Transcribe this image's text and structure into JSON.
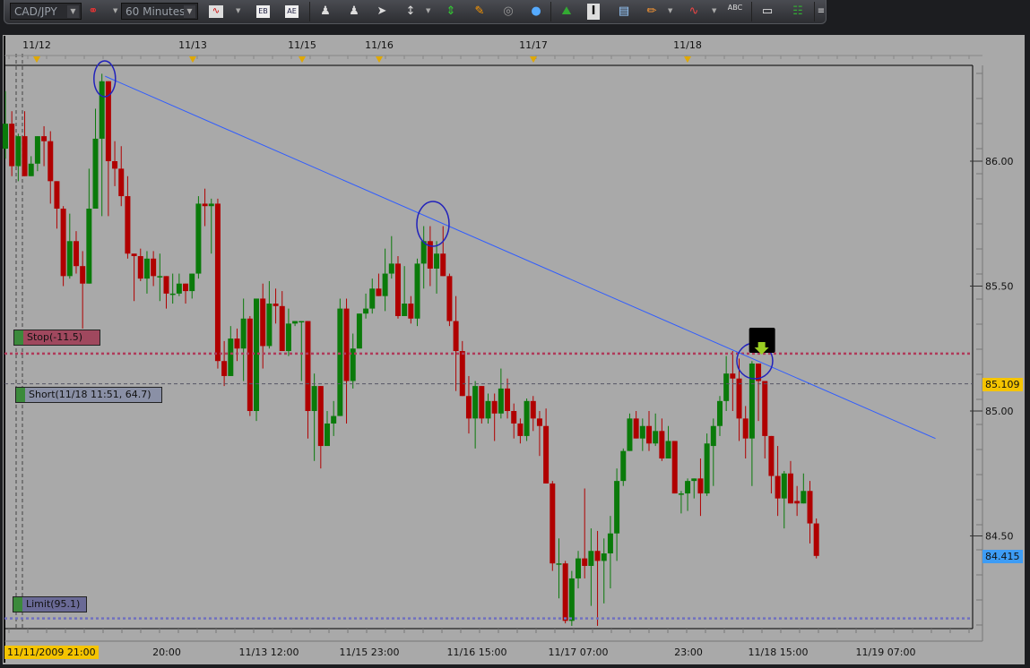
{
  "toolbar": {
    "symbol": "CAD/JPY",
    "timeframe": "60 Minutes",
    "icons": [
      "link-remove-icon",
      "chart-type-icon",
      "bid-icon",
      "ask-icon",
      "zoom-in-icon",
      "zoom-out-icon",
      "cursor-add-icon",
      "zoom-range-icon",
      "vertical-fit-icon",
      "edit-icon",
      "eye-icon",
      "globe-icon",
      "add-picture-icon",
      "text-icon",
      "indicator-list-icon",
      "pencil-icon",
      "signal-icon",
      "add-text-icon",
      "eraser-icon",
      "hierarchy-icon",
      "menu-icon"
    ],
    "add_text_label": "ABC"
  },
  "orders": {
    "stop": {
      "label": "Stop(-11.5)",
      "price": 85.23,
      "color": "#b03a5a"
    },
    "short": {
      "label": "Short(11/18 11:51, 64.7)",
      "price": 85.109,
      "color": "#555566"
    },
    "limit": {
      "label": "Limit(95.1)",
      "price": 84.17,
      "color": "#7070c0"
    }
  },
  "price_tags": {
    "entry": {
      "text": "85.109",
      "color": "#f5c400"
    },
    "current": {
      "text": "84.415",
      "color": "#3d9cf5"
    }
  },
  "chart_data": {
    "type": "candlestick",
    "title": "",
    "ylim": [
      84.13,
      86.38
    ],
    "yticks": [
      "86.00",
      "85.50",
      "85.00",
      "84.50"
    ],
    "ytick_values": [
      86.0,
      85.5,
      85.0,
      84.5
    ],
    "top_date_labels": [
      "11/12",
      "11/13",
      "11/15",
      "11/16",
      "11/17",
      "11/18"
    ],
    "x_labels": [
      "11/11/2009 21:00",
      "20:00",
      "11/13 12:00",
      "11/15 23:00",
      "11/16 15:00",
      "11/17 07:00",
      "23:00",
      "11/18 15:00",
      "11/19 07:00"
    ],
    "up_color": "#0a7a0a",
    "down_color": "#b00000",
    "trendline": {
      "from_candle": 15.5,
      "from_price": 86.34,
      "to_candle": 144.5,
      "to_price": 84.89,
      "color": "#2f5cff"
    },
    "touch_circles_at_candles": [
      15.5,
      66.5,
      116.5
    ],
    "sell_signal_candle": 117.5,
    "candles_ohlc": [
      [
        86.05,
        86.28,
        86.01,
        86.15
      ],
      [
        86.15,
        86.2,
        85.94,
        85.98
      ],
      [
        85.98,
        86.11,
        85.92,
        86.1
      ],
      [
        86.1,
        86.2,
        85.94,
        85.94
      ],
      [
        85.94,
        86.02,
        85.94,
        85.99
      ],
      [
        85.99,
        86.1,
        85.96,
        86.1
      ],
      [
        86.1,
        86.14,
        85.98,
        86.08
      ],
      [
        86.08,
        86.12,
        85.83,
        85.92
      ],
      [
        85.92,
        85.92,
        85.73,
        85.81
      ],
      [
        85.81,
        85.82,
        85.5,
        85.54
      ],
      [
        85.54,
        85.79,
        85.53,
        85.68
      ],
      [
        85.68,
        85.72,
        85.55,
        85.58
      ],
      [
        85.58,
        85.64,
        85.33,
        85.51
      ],
      [
        85.51,
        85.97,
        85.51,
        85.81
      ],
      [
        85.81,
        86.21,
        85.81,
        86.09
      ],
      [
        86.09,
        86.35,
        85.78,
        86.32
      ],
      [
        86.32,
        86.32,
        85.78,
        86.0
      ],
      [
        86.0,
        86.08,
        85.9,
        85.97
      ],
      [
        85.97,
        86.06,
        85.82,
        85.86
      ],
      [
        85.86,
        85.94,
        85.61,
        85.63
      ],
      [
        85.63,
        85.63,
        85.44,
        85.62
      ],
      [
        85.62,
        85.65,
        85.52,
        85.53
      ],
      [
        85.53,
        85.64,
        85.47,
        85.61
      ],
      [
        85.61,
        85.64,
        85.5,
        85.54
      ],
      [
        85.54,
        85.63,
        85.44,
        85.54
      ],
      [
        85.54,
        85.54,
        85.41,
        85.47
      ],
      [
        85.47,
        85.55,
        85.43,
        85.47
      ],
      [
        85.47,
        85.55,
        85.46,
        85.51
      ],
      [
        85.51,
        85.51,
        85.43,
        85.48
      ],
      [
        85.48,
        85.55,
        85.45,
        85.55
      ],
      [
        85.55,
        85.86,
        85.53,
        85.83
      ],
      [
        85.83,
        85.89,
        85.74,
        85.82
      ],
      [
        85.82,
        85.85,
        85.63,
        85.83
      ],
      [
        85.83,
        85.85,
        85.17,
        85.2
      ],
      [
        85.2,
        85.28,
        85.1,
        85.14
      ],
      [
        85.14,
        85.34,
        85.14,
        85.29
      ],
      [
        85.29,
        85.33,
        85.2,
        85.25
      ],
      [
        85.25,
        85.45,
        85.12,
        85.37
      ],
      [
        85.37,
        85.38,
        84.98,
        85.0
      ],
      [
        85.0,
        85.45,
        84.96,
        85.45
      ],
      [
        85.45,
        85.51,
        85.17,
        85.26
      ],
      [
        85.26,
        85.52,
        85.25,
        85.43
      ],
      [
        85.43,
        85.49,
        85.35,
        85.42
      ],
      [
        85.42,
        85.48,
        85.24,
        85.24
      ],
      [
        85.24,
        85.41,
        85.22,
        85.35
      ],
      [
        85.35,
        85.36,
        85.34,
        85.36
      ],
      [
        85.36,
        85.36,
        85.12,
        85.36
      ],
      [
        85.36,
        85.36,
        84.89,
        85.0
      ],
      [
        85.0,
        85.15,
        84.8,
        85.1
      ],
      [
        85.1,
        85.1,
        84.77,
        84.86
      ],
      [
        84.86,
        85.0,
        84.86,
        84.95
      ],
      [
        84.95,
        85.04,
        84.9,
        84.98
      ],
      [
        84.98,
        85.45,
        84.98,
        85.41
      ],
      [
        85.41,
        85.45,
        84.95,
        85.12
      ],
      [
        85.12,
        85.31,
        85.09,
        85.25
      ],
      [
        85.25,
        85.39,
        85.25,
        85.39
      ],
      [
        85.39,
        85.47,
        85.37,
        85.41
      ],
      [
        85.41,
        85.53,
        85.39,
        85.49
      ],
      [
        85.49,
        85.55,
        85.46,
        85.46
      ],
      [
        85.46,
        85.65,
        85.4,
        85.55
      ],
      [
        85.55,
        85.7,
        85.53,
        85.59
      ],
      [
        85.59,
        85.62,
        85.37,
        85.38
      ],
      [
        85.38,
        85.58,
        85.38,
        85.43
      ],
      [
        85.43,
        85.46,
        85.35,
        85.37
      ],
      [
        85.37,
        85.61,
        85.34,
        85.59
      ],
      [
        85.59,
        85.74,
        85.49,
        85.68
      ],
      [
        85.68,
        85.74,
        85.5,
        85.57
      ],
      [
        85.57,
        85.68,
        85.47,
        85.63
      ],
      [
        85.63,
        85.74,
        85.54,
        85.54
      ],
      [
        85.54,
        85.55,
        85.34,
        85.36
      ],
      [
        85.36,
        85.46,
        85.08,
        85.24
      ],
      [
        85.24,
        85.28,
        85.06,
        85.06
      ],
      [
        85.06,
        85.14,
        84.91,
        84.97
      ],
      [
        84.97,
        85.12,
        84.85,
        85.1
      ],
      [
        85.1,
        85.1,
        84.95,
        84.97
      ],
      [
        84.97,
        85.07,
        84.95,
        85.04
      ],
      [
        85.04,
        85.07,
        84.88,
        84.99
      ],
      [
        84.99,
        85.17,
        84.97,
        85.09
      ],
      [
        85.09,
        85.13,
        84.97,
        85.0
      ],
      [
        85.0,
        85.03,
        84.89,
        84.95
      ],
      [
        84.95,
        84.97,
        84.87,
        84.9
      ],
      [
        84.9,
        85.05,
        84.88,
        85.04
      ],
      [
        85.04,
        85.06,
        84.92,
        84.97
      ],
      [
        84.97,
        85.0,
        84.82,
        84.94
      ],
      [
        84.94,
        85.01,
        84.71,
        84.71
      ],
      [
        84.71,
        84.72,
        84.36,
        84.39
      ],
      [
        84.39,
        84.49,
        84.25,
        84.39
      ],
      [
        84.39,
        84.4,
        84.15,
        84.16
      ],
      [
        84.16,
        84.36,
        84.14,
        84.33
      ],
      [
        84.33,
        84.44,
        84.29,
        84.41
      ],
      [
        84.41,
        84.69,
        84.33,
        84.38
      ],
      [
        84.38,
        84.53,
        84.22,
        84.44
      ],
      [
        84.44,
        84.52,
        84.14,
        84.4
      ],
      [
        84.4,
        84.49,
        84.23,
        84.43
      ],
      [
        84.43,
        84.58,
        84.29,
        84.51
      ],
      [
        84.51,
        84.77,
        84.4,
        84.72
      ],
      [
        84.72,
        84.85,
        84.7,
        84.84
      ],
      [
        84.84,
        84.99,
        84.84,
        84.97
      ],
      [
        84.97,
        85.0,
        84.89,
        84.89
      ],
      [
        84.89,
        84.97,
        84.84,
        84.94
      ],
      [
        84.94,
        85.0,
        84.84,
        84.87
      ],
      [
        84.87,
        84.99,
        84.86,
        84.92
      ],
      [
        84.92,
        84.97,
        84.8,
        84.81
      ],
      [
        84.81,
        84.94,
        84.81,
        84.88
      ],
      [
        84.88,
        84.88,
        84.67,
        84.67
      ],
      [
        84.67,
        84.68,
        84.59,
        84.67
      ],
      [
        84.67,
        84.73,
        84.6,
        84.72
      ],
      [
        84.72,
        84.73,
        84.65,
        84.73
      ],
      [
        84.73,
        84.81,
        84.58,
        84.67
      ],
      [
        84.67,
        84.91,
        84.66,
        84.87
      ],
      [
        84.86,
        84.97,
        84.7,
        84.94
      ],
      [
        84.94,
        85.06,
        84.9,
        85.04
      ],
      [
        85.04,
        85.22,
        85.0,
        85.15
      ],
      [
        85.15,
        85.24,
        85.0,
        85.13
      ],
      [
        85.13,
        85.21,
        84.88,
        84.97
      ],
      [
        84.97,
        85.02,
        84.81,
        84.89
      ],
      [
        84.89,
        85.2,
        84.7,
        85.19
      ],
      [
        85.19,
        85.19,
        84.96,
        85.12
      ],
      [
        85.12,
        85.12,
        84.81,
        84.9
      ],
      [
        84.9,
        84.9,
        84.67,
        84.74
      ],
      [
        84.74,
        84.86,
        84.58,
        84.65
      ],
      [
        84.65,
        84.76,
        84.53,
        84.75
      ],
      [
        84.75,
        84.8,
        84.63,
        84.63
      ],
      [
        84.64,
        84.7,
        84.58,
        84.63
      ],
      [
        84.63,
        84.75,
        84.63,
        84.68
      ],
      [
        84.68,
        84.72,
        84.47,
        84.55
      ],
      [
        84.55,
        84.57,
        84.41,
        84.42
      ]
    ]
  }
}
